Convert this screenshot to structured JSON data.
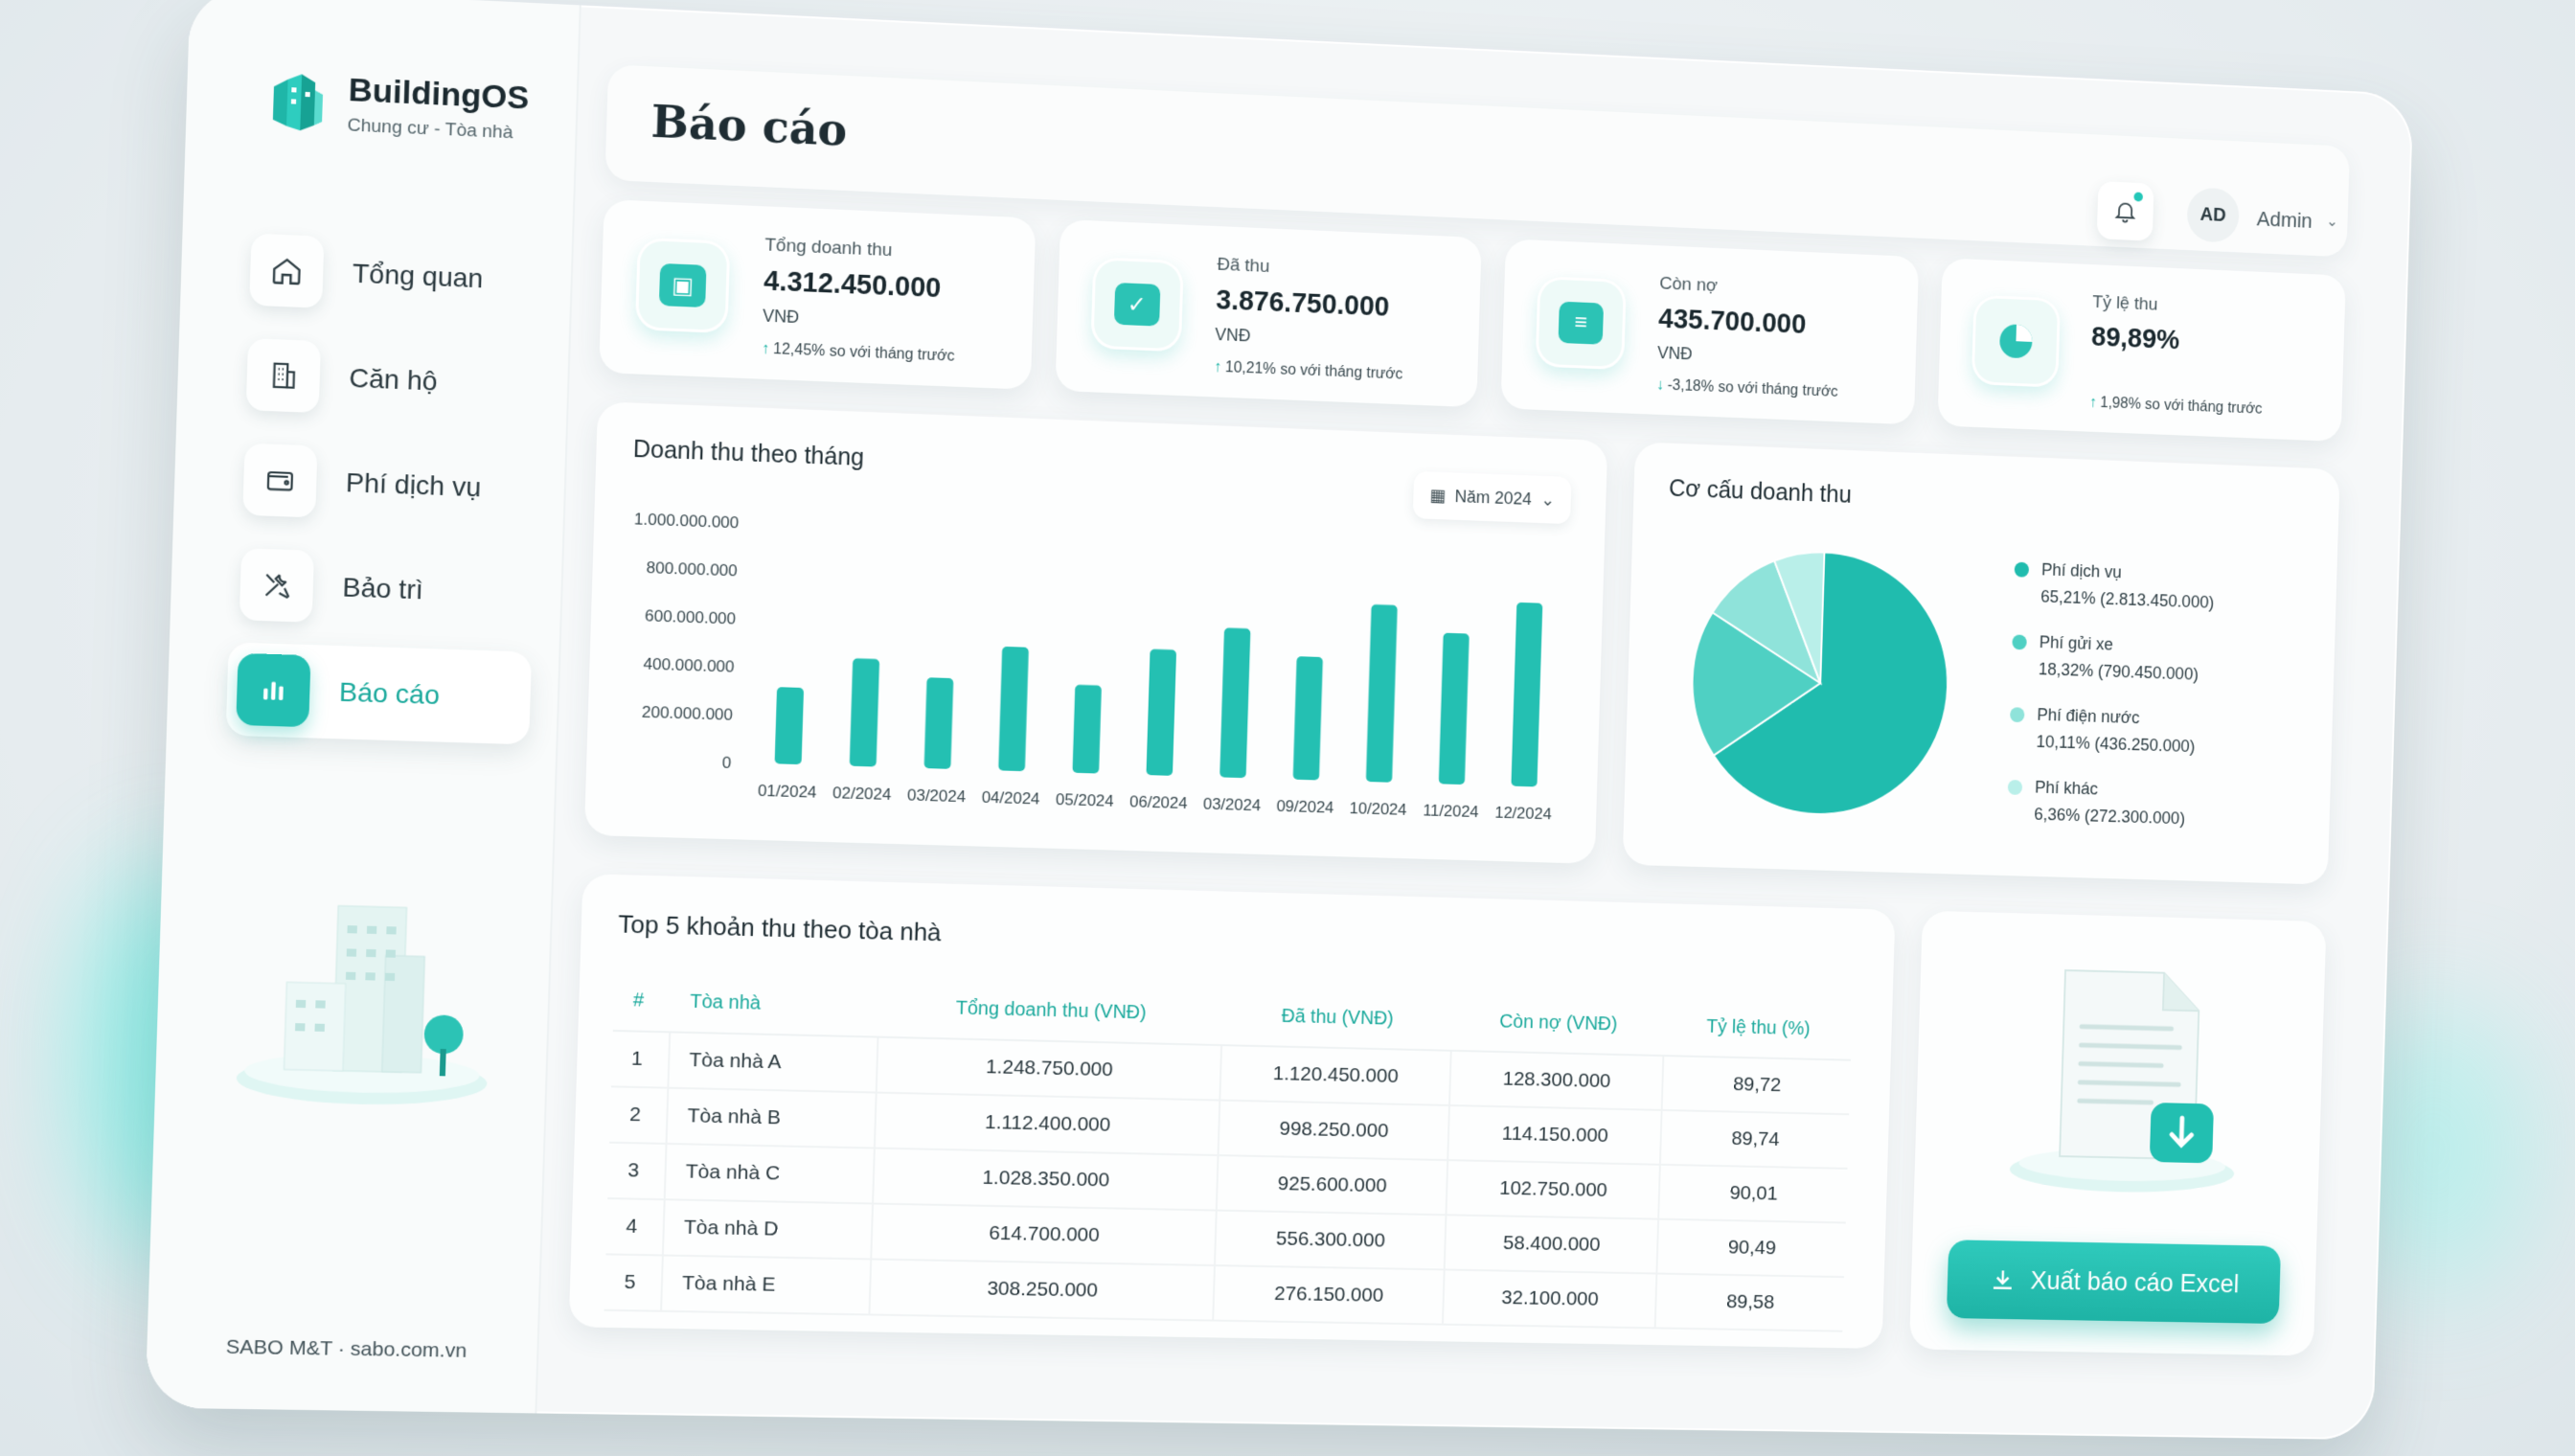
{
  "brand": {
    "name": "BuildingOS",
    "subtitle": "Chung cư - Tòa nhà"
  },
  "nav": [
    {
      "label": "Tổng quan",
      "icon": "home-icon",
      "active": false
    },
    {
      "label": "Căn hộ",
      "icon": "building-icon",
      "active": false
    },
    {
      "label": "Phí dịch vụ",
      "icon": "wallet-icon",
      "active": false
    },
    {
      "label": "Bảo trì",
      "icon": "tools-icon",
      "active": false
    },
    {
      "label": "Báo cáo",
      "icon": "bar-chart-icon",
      "active": true
    }
  ],
  "footer": "SABO M&T · sabo.com.vn",
  "header": {
    "title": "Báo cáo",
    "avatar": "AD",
    "user": "Admin"
  },
  "kpis": [
    {
      "label": "Tổng doanh thu",
      "value": "4.312.450.000",
      "unit": "VNĐ",
      "trend": "12,45% so với tháng trước",
      "direction": "up",
      "icon": "wallet-icon"
    },
    {
      "label": "Đã thu",
      "value": "3.876.750.000",
      "unit": "VNĐ",
      "trend": "10,21% so với tháng trước",
      "direction": "up",
      "icon": "check-icon"
    },
    {
      "label": "Còn nợ",
      "value": "435.700.000",
      "unit": "VNĐ",
      "trend": "-3,18% so với tháng trước",
      "direction": "down",
      "icon": "invoice-icon"
    },
    {
      "label": "Tỷ lệ thu",
      "value": "89,89%",
      "unit": "",
      "trend": "1,98% so với tháng trước",
      "direction": "up",
      "icon": "pie-icon"
    }
  ],
  "bar_chart": {
    "title": "Doanh thu theo tháng",
    "year_select": "Năm 2024"
  },
  "pie_chart": {
    "title": "Cơ cấu doanh thu",
    "legend": [
      {
        "name": "Phí dịch vụ",
        "detail": "65,21%  (2.813.450.000)",
        "color": "#20bcae"
      },
      {
        "name": "Phí gửi xe",
        "detail": "18,32%  (790.450.000)",
        "color": "#4fd0c3"
      },
      {
        "name": "Phí điện nước",
        "detail": "10,11%  (436.250.000)",
        "color": "#8fe3da"
      },
      {
        "name": "Phí khác",
        "detail": "6,36%  (272.300.000)",
        "color": "#b9efe9"
      }
    ]
  },
  "chart_data": [
    {
      "type": "bar",
      "categories": [
        "01/2024",
        "02/2024",
        "03/2024",
        "04/2024",
        "05/2024",
        "06/2024",
        "03/2024",
        "09/2024",
        "10/2024",
        "11/2024",
        "12/2024"
      ],
      "values": [
        320000000,
        450000000,
        380000000,
        520000000,
        370000000,
        530000000,
        630000000,
        520000000,
        750000000,
        640000000,
        780000000
      ],
      "y_ticks": [
        "1.000.000.000",
        "800.000.000",
        "600.000.000",
        "400.000.000",
        "200.000.000",
        "0"
      ],
      "ylim": [
        0,
        1000000000
      ],
      "title": "Doanh thu theo tháng",
      "color": "#24c0b2"
    },
    {
      "type": "pie",
      "title": "Cơ cấu doanh thu",
      "labels": [
        "Phí dịch vụ",
        "Phí gửi xe",
        "Phí điện nước",
        "Phí khác"
      ],
      "values": [
        65.21,
        18.32,
        10.11,
        6.36
      ],
      "colors": [
        "#20bcae",
        "#4fd0c3",
        "#8fe3da",
        "#b9efe9"
      ]
    }
  ],
  "table": {
    "title": "Top 5 khoản thu theo tòa nhà",
    "headers": [
      "#",
      "Tòa nhà",
      "Tổng doanh thu (VNĐ)",
      "Đã thu (VNĐ)",
      "Còn nợ (VNĐ)",
      "Tỷ lệ thu (%)"
    ],
    "rows": [
      [
        "1",
        "Tòa nhà A",
        "1.248.750.000",
        "1.120.450.000",
        "128.300.000",
        "89,72"
      ],
      [
        "2",
        "Tòa nhà B",
        "1.112.400.000",
        "998.250.000",
        "114.150.000",
        "89,74"
      ],
      [
        "3",
        "Tòa nhà C",
        "1.028.350.000",
        "925.600.000",
        "102.750.000",
        "90,01"
      ],
      [
        "4",
        "Tòa nhà D",
        "614.700.000",
        "556.300.000",
        "58.400.000",
        "90,49"
      ],
      [
        "5",
        "Tòa nhà E",
        "308.250.000",
        "276.150.000",
        "32.100.000",
        "89,58"
      ]
    ]
  },
  "export": {
    "button_label": "Xuất báo cáo Excel"
  }
}
